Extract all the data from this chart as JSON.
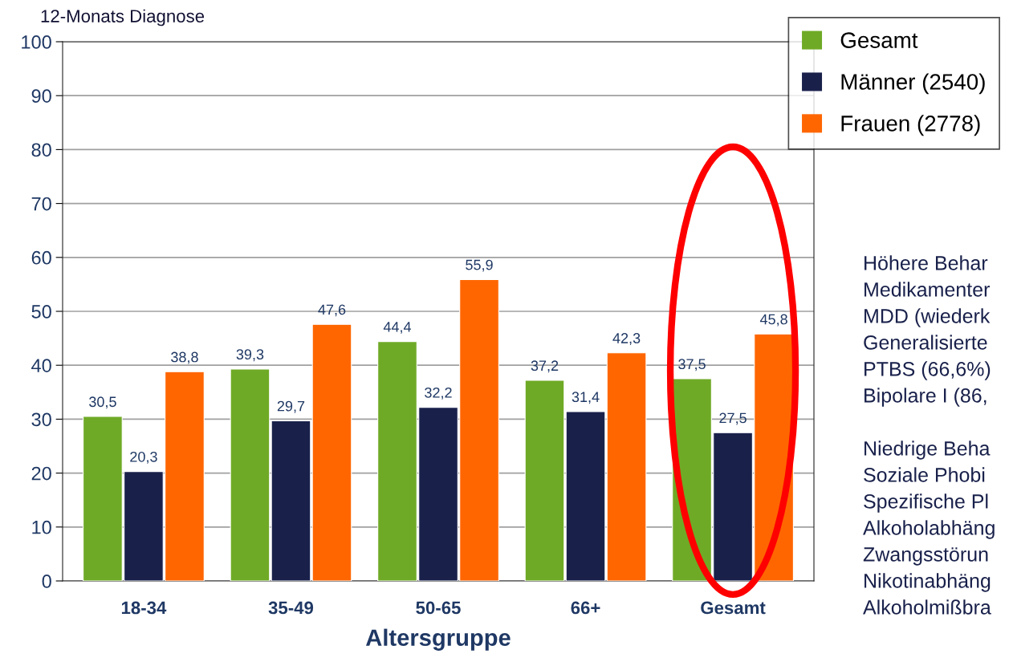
{
  "chart_data": {
    "type": "bar",
    "title": "12-Monats Diagnose",
    "xlabel": "Altersgruppe",
    "categories": [
      "18-34",
      "35-49",
      "50-65",
      "66+",
      "Gesamt"
    ],
    "series": [
      {
        "name": "Gesamt",
        "color": "#6faa26",
        "values": [
          30.5,
          39.3,
          44.4,
          37.2,
          37.5
        ],
        "value_labels": [
          "30,5",
          "39,3",
          "44,4",
          "37,2",
          "37,5"
        ]
      },
      {
        "name": "Männer (2540)",
        "color": "#19214b",
        "values": [
          20.3,
          29.7,
          32.2,
          31.4,
          27.5
        ],
        "value_labels": [
          "20,3",
          "29,7",
          "32,2",
          "31,4",
          "27,5"
        ]
      },
      {
        "name": "Frauen (2778)",
        "color": "#ff6600",
        "values": [
          38.8,
          47.6,
          55.9,
          42.3,
          45.8
        ],
        "value_labels": [
          "38,8",
          "47,6",
          "55,9",
          "42,3",
          "45,8"
        ]
      }
    ],
    "ylim": [
      0,
      100
    ],
    "yticks": [
      0,
      10,
      20,
      30,
      40,
      50,
      60,
      70,
      80,
      90,
      100
    ],
    "grid": "y",
    "legend": "top right",
    "annotations": [
      "Höhere Behar",
      "Medikamenter",
      "MDD (wiederk",
      "Generalisierte",
      "PTBS (66,6%)",
      "Bipolare I (86,",
      "Niedrige Beha",
      "Soziale Phobi",
      "Spezifische Pl",
      "Alkoholabhäng",
      "Zwangsstörun",
      "Nikotinabhäng",
      "Alkoholmißbra"
    ]
  }
}
